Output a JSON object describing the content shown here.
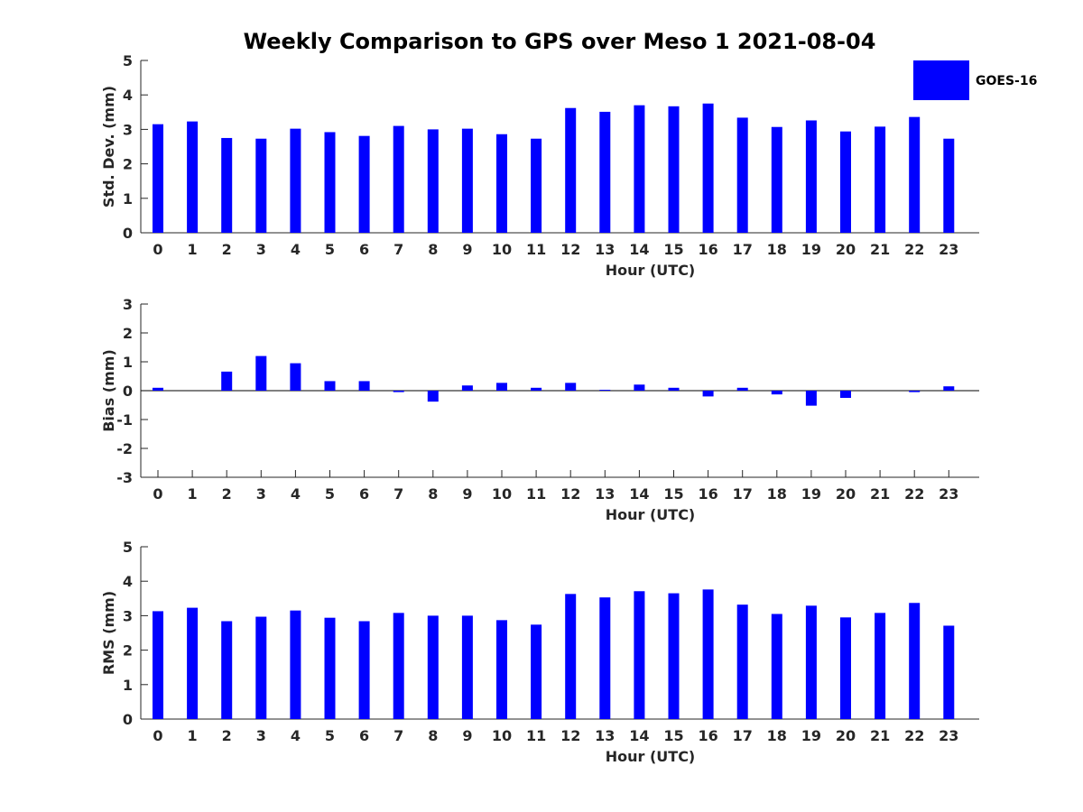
{
  "figure": {
    "title": "Weekly Comparison to GPS over Meso 1 2021-08-04",
    "legend": {
      "label": "GOES-16",
      "color": "#0000FF",
      "placement": "top-right"
    }
  },
  "chart_data": [
    {
      "type": "bar",
      "title": "Weekly Comparison to GPS over Meso 1 2021-08-04",
      "xlabel": "Hour (UTC)",
      "ylabel": "Std. Dev. (mm)",
      "ylim": [
        0,
        5
      ],
      "yticks": [
        "0",
        "1",
        "2",
        "3",
        "4",
        "5"
      ],
      "categories": [
        "0",
        "1",
        "2",
        "3",
        "4",
        "5",
        "6",
        "7",
        "8",
        "9",
        "10",
        "11",
        "12",
        "13",
        "14",
        "15",
        "16",
        "17",
        "18",
        "19",
        "20",
        "21",
        "22",
        "23"
      ],
      "series": [
        {
          "name": "GOES-16",
          "color": "#0000FF",
          "values": [
            3.15,
            3.23,
            2.75,
            2.73,
            3.02,
            2.92,
            2.81,
            3.1,
            3.0,
            3.02,
            2.86,
            2.73,
            3.62,
            3.51,
            3.7,
            3.67,
            3.75,
            3.34,
            3.07,
            3.26,
            2.94,
            3.08,
            3.36,
            2.73
          ]
        }
      ]
    },
    {
      "type": "bar",
      "xlabel": "Hour (UTC)",
      "ylabel": "Bias (mm)",
      "ylim": [
        -3,
        3
      ],
      "yticks": [
        "-3",
        "-2",
        "-1",
        "0",
        "1",
        "2",
        "3"
      ],
      "categories": [
        "0",
        "1",
        "2",
        "3",
        "4",
        "5",
        "6",
        "7",
        "8",
        "9",
        "10",
        "11",
        "12",
        "13",
        "14",
        "15",
        "16",
        "17",
        "18",
        "19",
        "20",
        "21",
        "22",
        "23"
      ],
      "series": [
        {
          "name": "GOES-16",
          "color": "#0000FF",
          "values": [
            0.1,
            0.0,
            0.66,
            1.2,
            0.95,
            0.33,
            0.33,
            -0.05,
            -0.38,
            0.18,
            0.27,
            0.1,
            0.27,
            0.03,
            0.21,
            0.1,
            -0.2,
            0.1,
            -0.13,
            -0.52,
            -0.25,
            0.0,
            -0.05,
            0.15
          ]
        }
      ]
    },
    {
      "type": "bar",
      "xlabel": "Hour (UTC)",
      "ylabel": "RMS (mm)",
      "ylim": [
        0,
        5
      ],
      "yticks": [
        "0",
        "1",
        "2",
        "3",
        "4",
        "5"
      ],
      "categories": [
        "0",
        "1",
        "2",
        "3",
        "4",
        "5",
        "6",
        "7",
        "8",
        "9",
        "10",
        "11",
        "12",
        "13",
        "14",
        "15",
        "16",
        "17",
        "18",
        "19",
        "20",
        "21",
        "22",
        "23"
      ],
      "series": [
        {
          "name": "GOES-16",
          "color": "#0000FF",
          "values": [
            3.13,
            3.23,
            2.84,
            2.97,
            3.15,
            2.94,
            2.84,
            3.08,
            3.0,
            3.0,
            2.87,
            2.74,
            3.63,
            3.53,
            3.71,
            3.65,
            3.76,
            3.32,
            3.05,
            3.29,
            2.95,
            3.08,
            3.37,
            2.71
          ]
        }
      ]
    }
  ]
}
